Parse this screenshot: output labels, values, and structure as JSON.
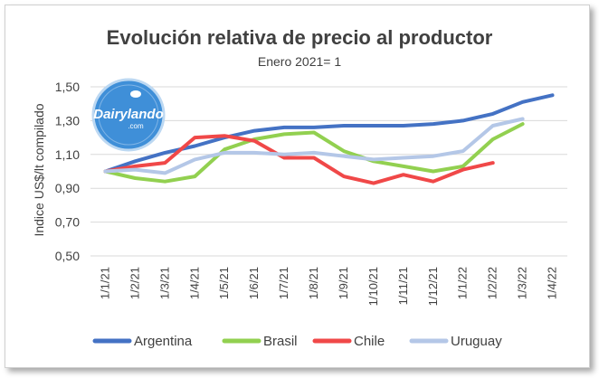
{
  "chart_data": {
    "type": "line",
    "title": "Evolución relativa de precio al productor",
    "subtitle": "Enero 2021= 1",
    "ylabel": "Indice US$/lt compilado",
    "xlabel": "",
    "ylim": [
      0.5,
      1.5
    ],
    "yticks": [
      "1,50",
      "1,30",
      "1,10",
      "0,90",
      "0,70",
      "0,50"
    ],
    "ytick_values": [
      1.5,
      1.3,
      1.1,
      0.9,
      0.7,
      0.5
    ],
    "grid": true,
    "legend_position": "bottom",
    "categories": [
      "1/1/21",
      "1/2/21",
      "1/3/21",
      "1/4/21",
      "1/5/21",
      "1/6/21",
      "1/7/21",
      "1/8/21",
      "1/9/21",
      "1/10/21",
      "1/11/21",
      "1/12/21",
      "1/1/22",
      "1/2/22",
      "1/3/22",
      "1/4/22"
    ],
    "series": [
      {
        "name": "Argentina",
        "color": "#4472c4",
        "values": [
          1.0,
          1.06,
          1.11,
          1.15,
          1.2,
          1.24,
          1.26,
          1.26,
          1.27,
          1.27,
          1.27,
          1.28,
          1.3,
          1.34,
          1.41,
          1.45
        ]
      },
      {
        "name": "Brasil",
        "color": "#92d050",
        "values": [
          1.0,
          0.96,
          0.94,
          0.97,
          1.13,
          1.19,
          1.22,
          1.23,
          1.12,
          1.06,
          1.03,
          1.0,
          1.03,
          1.19,
          1.28,
          null
        ]
      },
      {
        "name": "Chile",
        "color": "#f04848",
        "values": [
          1.0,
          1.03,
          1.05,
          1.2,
          1.21,
          1.18,
          1.08,
          1.08,
          0.97,
          0.93,
          0.98,
          0.94,
          1.01,
          1.05,
          null,
          null
        ]
      },
      {
        "name": "Uruguay",
        "color": "#b4c7e7",
        "values": [
          1.0,
          1.01,
          0.99,
          1.07,
          1.11,
          1.11,
          1.1,
          1.11,
          1.09,
          1.07,
          1.08,
          1.09,
          1.12,
          1.27,
          1.31,
          null
        ]
      }
    ]
  },
  "logo": {
    "name": "Dairylando",
    "sub": ".com"
  }
}
